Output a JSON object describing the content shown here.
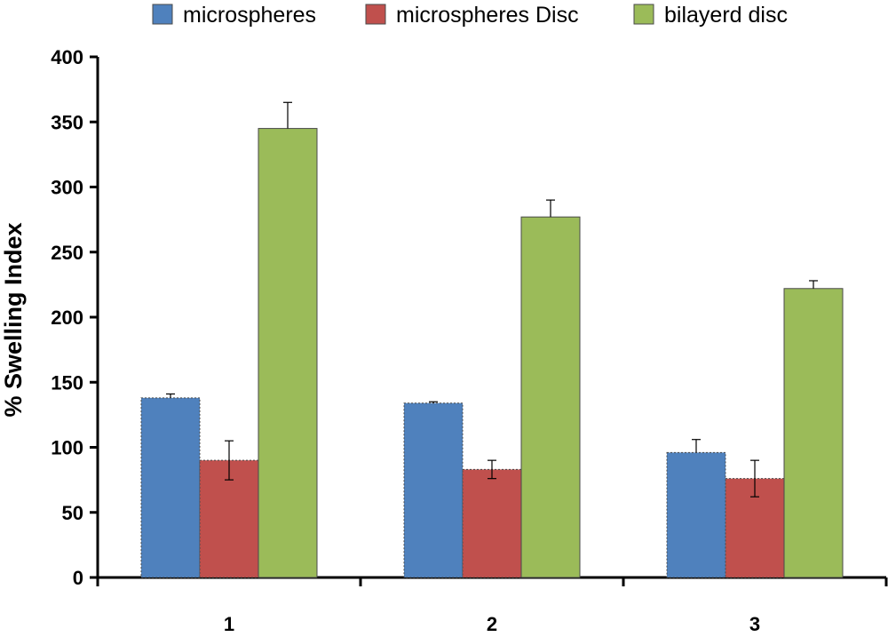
{
  "chart_data": {
    "type": "bar",
    "title": "",
    "xlabel": "",
    "ylabel": "% Swelling Index",
    "categories": [
      "1",
      "2",
      "3"
    ],
    "ylim": [
      0,
      400
    ],
    "yticks": [
      0,
      50,
      100,
      150,
      200,
      250,
      300,
      350,
      400
    ],
    "grid": false,
    "legend_position": "top",
    "series": [
      {
        "name": "microspheres",
        "color": "#4f81bd",
        "values": [
          138,
          134,
          96
        ],
        "errors": [
          3,
          1,
          10
        ]
      },
      {
        "name": "microspheres Disc",
        "color": "#c0504d",
        "values": [
          90,
          83,
          76
        ],
        "errors": [
          15,
          7,
          14
        ]
      },
      {
        "name": "bilayerd disc",
        "color": "#9bbb59",
        "values": [
          345,
          277,
          222
        ],
        "errors": [
          20,
          13,
          6
        ]
      }
    ]
  }
}
